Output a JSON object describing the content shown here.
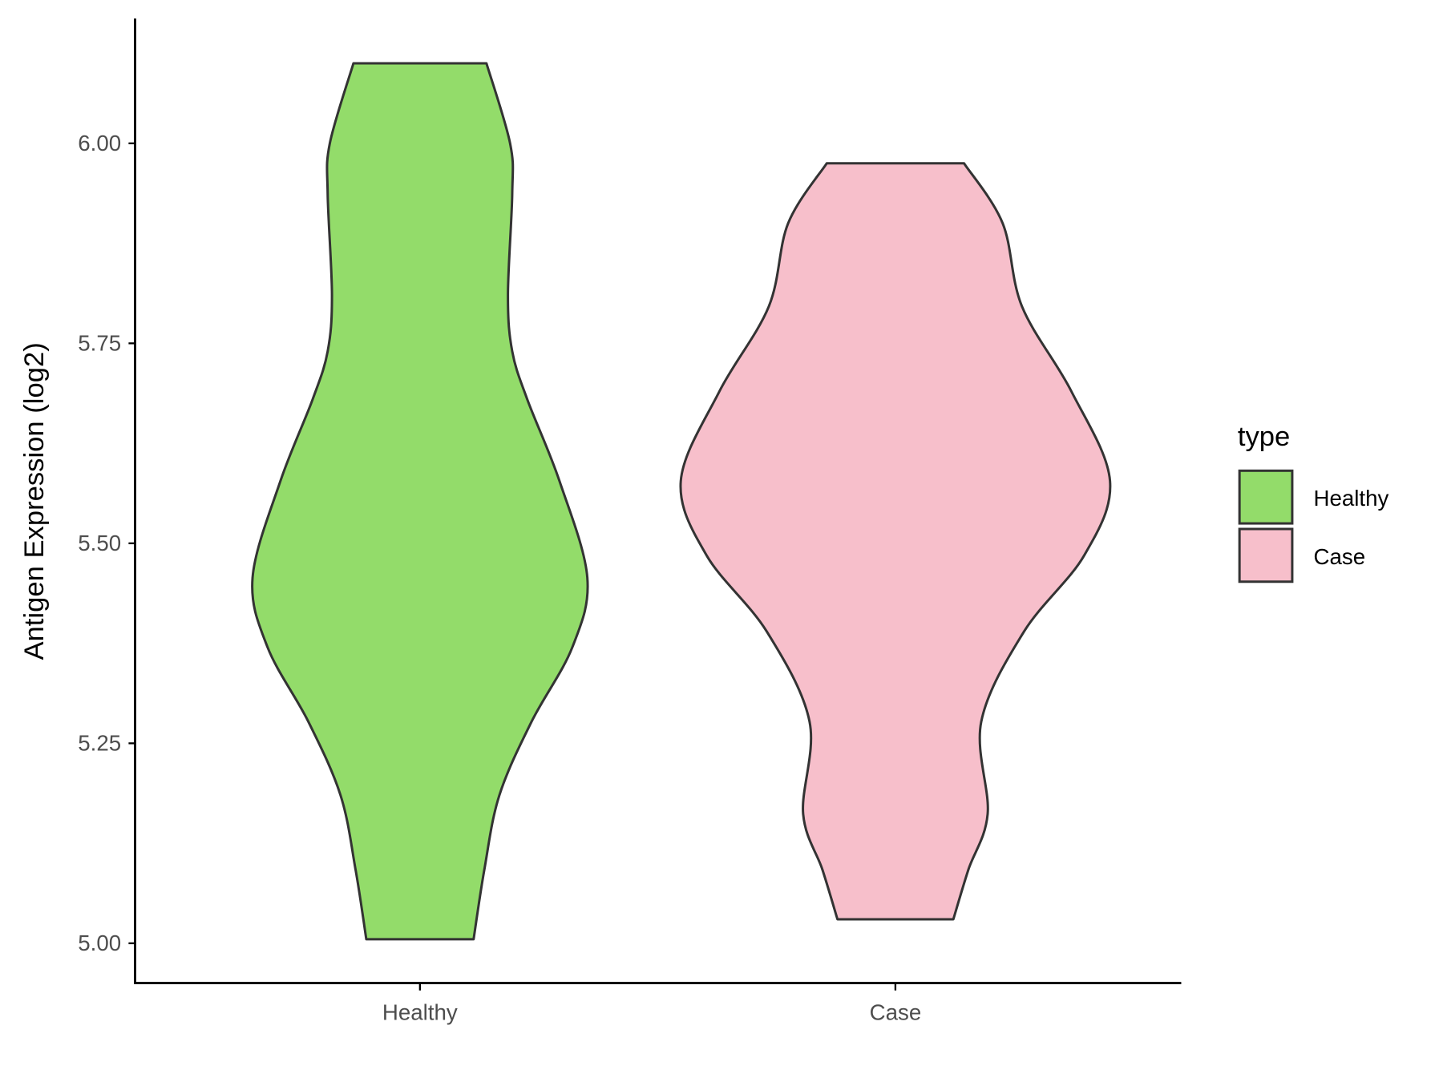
{
  "chart_data": {
    "type": "violin",
    "title": "",
    "xlabel": "",
    "ylabel": "Antigen Expression (log2)",
    "ylim": [
      4.95,
      6.155
    ],
    "yticks": [
      "5.00",
      "5.25",
      "5.50",
      "5.75",
      "6.00"
    ],
    "ytick_values": [
      5.0,
      5.25,
      5.5,
      5.75,
      6.0
    ],
    "categories": [
      "Healthy",
      "Case"
    ],
    "grid": false,
    "legend": {
      "title": "type",
      "position": "right",
      "entries": [
        {
          "label": "Healthy",
          "color": "#93dc6a"
        },
        {
          "label": "Case",
          "color": "#f7bfcb"
        }
      ]
    },
    "series": [
      {
        "name": "Healthy",
        "color": "#93dc6a",
        "range": [
          5.005,
          6.1
        ],
        "profile_y": [
          6.1,
          6.0,
          5.937,
          5.81,
          5.74,
          5.68,
          5.578,
          5.457,
          5.37,
          5.277,
          5.185,
          5.092,
          5.005
        ],
        "profile_density": [
          0.31,
          0.42,
          0.43,
          0.41,
          0.43,
          0.5,
          0.65,
          0.78,
          0.71,
          0.52,
          0.37,
          0.3,
          0.25
        ]
      },
      {
        "name": "Case",
        "color": "#f7bfcb",
        "range": [
          5.03,
          5.975
        ],
        "profile_y": [
          5.975,
          5.9,
          5.796,
          5.69,
          5.578,
          5.485,
          5.39,
          5.277,
          5.162,
          5.092,
          5.03
        ],
        "profile_density": [
          0.32,
          0.5,
          0.59,
          0.82,
          1.0,
          0.88,
          0.6,
          0.4,
          0.43,
          0.34,
          0.27
        ]
      }
    ]
  }
}
